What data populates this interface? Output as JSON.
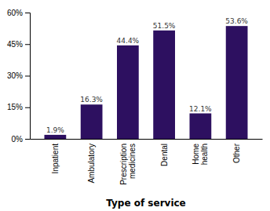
{
  "chart_data": {
    "type": "bar",
    "xlabel": "Type of service",
    "categories": [
      "Inpatient",
      "Ambulatory",
      "Prescription\nmedicines",
      "Dental",
      "Home\nhealth",
      "Other"
    ],
    "values": [
      1.9,
      16.3,
      44.4,
      51.5,
      12.1,
      53.6
    ],
    "value_labels": [
      "1.9%",
      "16.3%",
      "44.4%",
      "51.5%",
      "12.1%",
      "53.6%"
    ],
    "data_labels": true,
    "color": "#2d1060",
    "ylim": [
      0,
      60
    ],
    "yticks": [
      {
        "value": 0,
        "label": "0%"
      },
      {
        "value": 15,
        "label": "15%"
      },
      {
        "value": 30,
        "label": "30%"
      },
      {
        "value": 45,
        "label": "45%"
      },
      {
        "value": 60,
        "label": "60%"
      }
    ],
    "grid": false
  }
}
